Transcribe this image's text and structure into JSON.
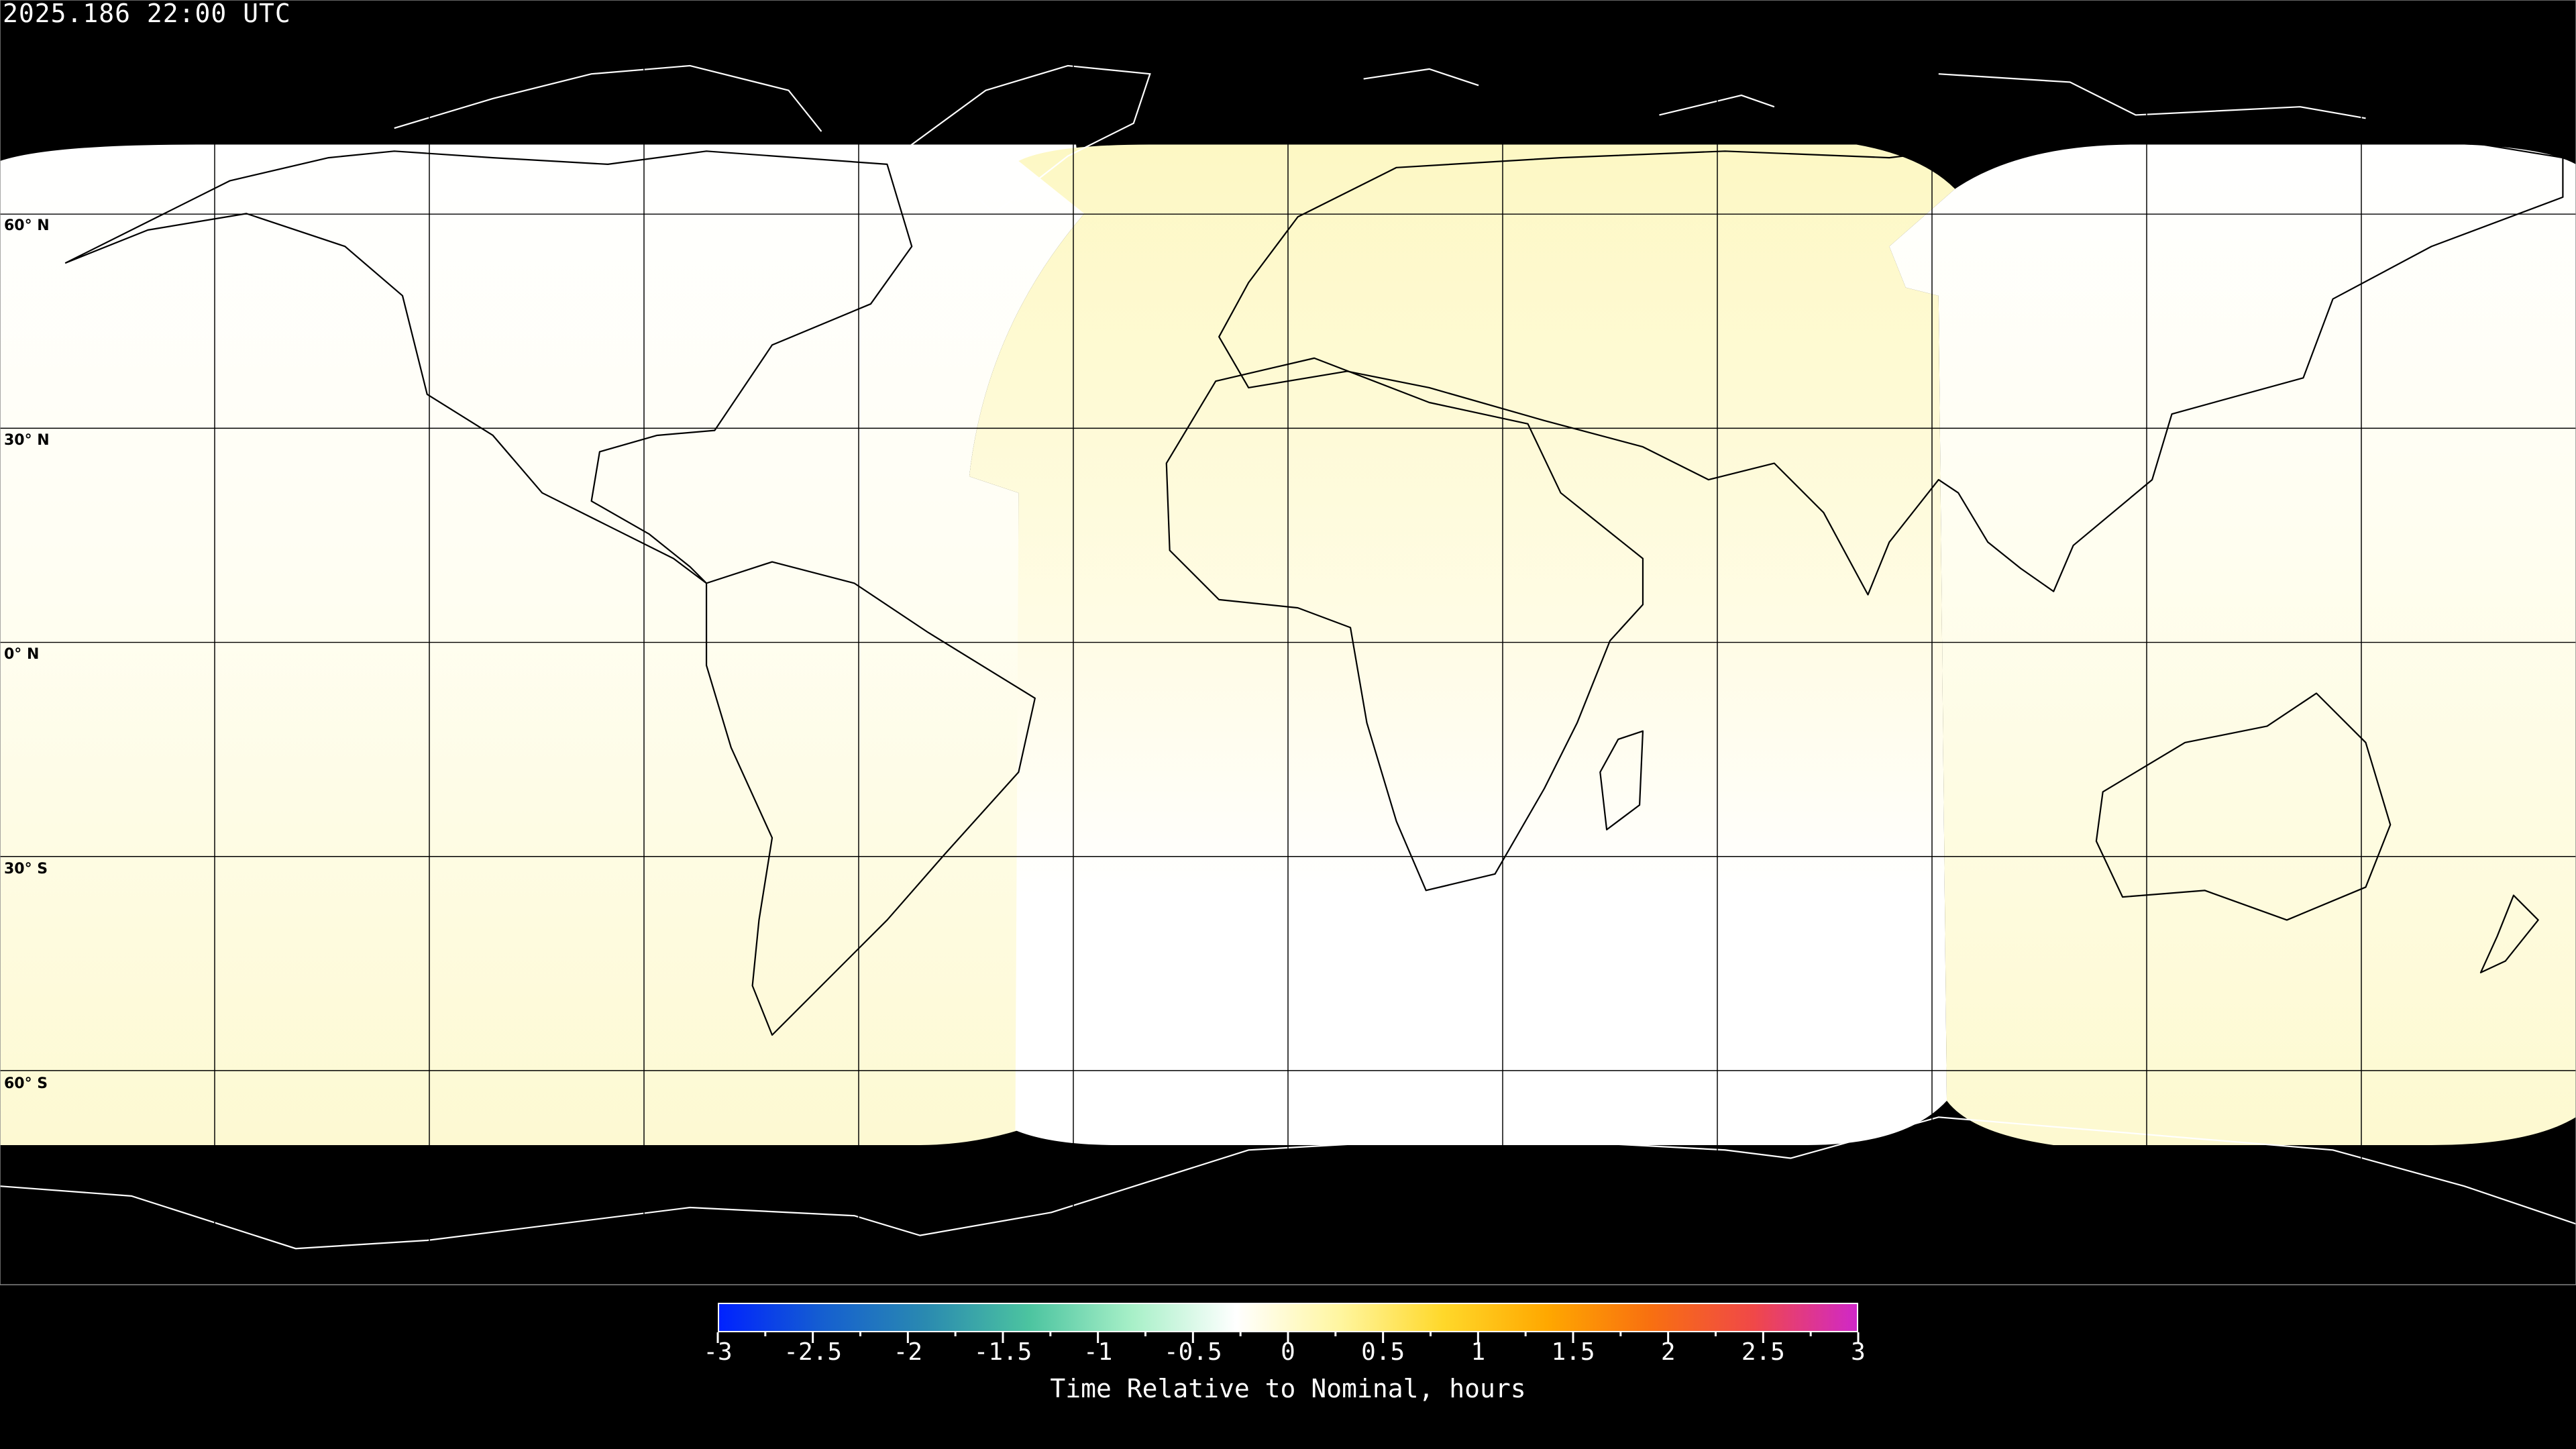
{
  "title": "2025.186 22:00 UTC",
  "lat_labels": [
    "60° N",
    "30° N",
    "0° N",
    "30° S",
    "60° S"
  ],
  "map": {
    "projection": "equirectangular",
    "graticule_step_degrees": 30,
    "background_color": "#000000",
    "coastline_color_on_data": "#000000",
    "coastline_color_on_background": "#ffffff",
    "regions": [
      {
        "side": "west",
        "value_north": 0.0,
        "value_south": 0.15
      },
      {
        "side": "central",
        "value_north": 0.2,
        "value_south": 0.0
      },
      {
        "side": "east",
        "value_north": 0.0,
        "value_south": 0.15
      }
    ]
  },
  "colorbar": {
    "min": -3,
    "max": 3,
    "tick_labels": [
      "-3",
      "-2.5",
      "-2",
      "-1.5",
      "-1",
      "-0.5",
      "0",
      "0.5",
      "1",
      "1.5",
      "2",
      "2.5",
      "3"
    ],
    "label": "Time Relative to Nominal, hours",
    "colors": [
      "#0022ff",
      "#155fd0",
      "#2a8ab0",
      "#4cc4a0",
      "#a8f0c8",
      "#ffffff",
      "#fff6a0",
      "#ffd82a",
      "#ffa800",
      "#f87010",
      "#f04848",
      "#d028c8"
    ]
  }
}
